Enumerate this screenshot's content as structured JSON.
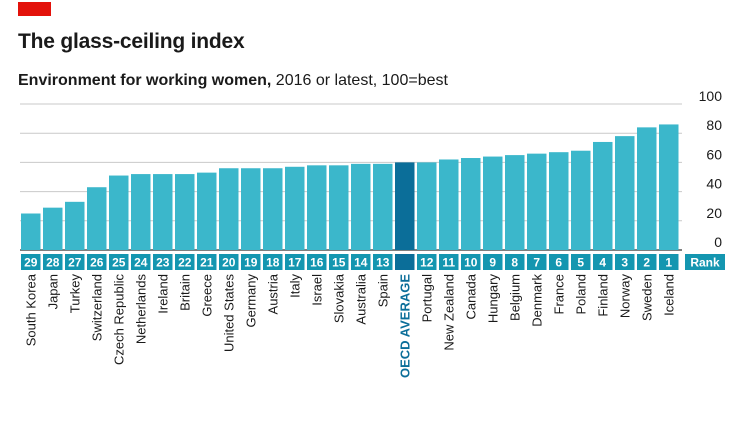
{
  "title": "The glass-ceiling index",
  "subtitle_bold": "Environment for working women,",
  "subtitle_rest": " 2016 or latest, 100=best",
  "colors": {
    "bar": "#3bb7cb",
    "highlight": "#0b6e99",
    "rank_band": "#1496b0",
    "grid": "#c9c9c9",
    "brand": "#e3120b"
  },
  "chart_data": {
    "type": "bar",
    "title": "The glass-ceiling index",
    "subtitle": "Environment for working women, 2016 or latest, 100=best",
    "xlabel": "",
    "ylabel": "",
    "ylim": [
      0,
      100
    ],
    "yticks": [
      0,
      20,
      40,
      60,
      80,
      100
    ],
    "grid": true,
    "rank_header": "Rank",
    "highlight": "OECD AVERAGE",
    "categories": [
      "South Korea",
      "Japan",
      "Turkey",
      "Switzerland",
      "Czech Republic",
      "Netherlands",
      "Ireland",
      "Britain",
      "Greece",
      "United States",
      "Germany",
      "Austria",
      "Italy",
      "Israel",
      "Slovakia",
      "Australia",
      "Spain",
      "OECD AVERAGE",
      "Portugal",
      "New Zealand",
      "Canada",
      "Hungary",
      "Belgium",
      "Denmark",
      "France",
      "Poland",
      "Finland",
      "Norway",
      "Sweden",
      "Iceland"
    ],
    "ranks": [
      "29",
      "28",
      "27",
      "26",
      "25",
      "24",
      "23",
      "22",
      "21",
      "20",
      "19",
      "18",
      "17",
      "16",
      "15",
      "14",
      "13",
      "",
      "12",
      "11",
      "10",
      "9",
      "8",
      "7",
      "6",
      "5",
      "4",
      "3",
      "2",
      "1"
    ],
    "values": [
      25,
      29,
      33,
      43,
      51,
      52,
      52,
      52,
      53,
      56,
      56,
      56,
      57,
      58,
      58,
      59,
      59,
      60,
      60,
      62,
      63,
      64,
      65,
      66,
      67,
      68,
      74,
      78,
      84,
      86
    ]
  }
}
